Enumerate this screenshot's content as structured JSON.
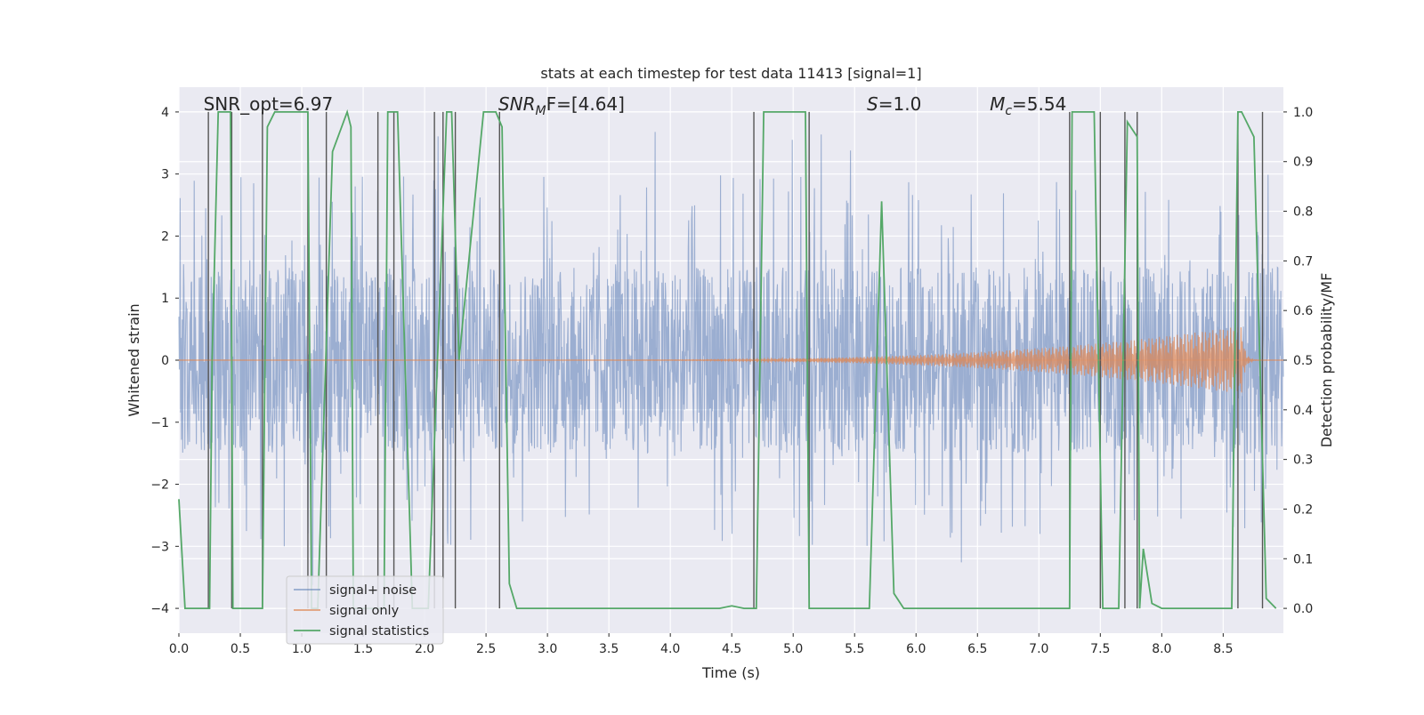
{
  "chart_data": {
    "type": "line",
    "title": "stats at each timestep for test data 11413 [signal=1]",
    "xlabel": "Time (s)",
    "ylabel": "Whitened strain",
    "ylabel_right": "Detection probability/MF",
    "xlim": [
      0.0,
      8.99
    ],
    "ylim_left": [
      -4.4,
      4.4
    ],
    "ylim_right": [
      -0.05,
      1.05
    ],
    "x_ticks": [
      0.0,
      0.5,
      1.0,
      1.5,
      2.0,
      2.5,
      3.0,
      3.5,
      4.0,
      4.5,
      5.0,
      5.5,
      6.0,
      6.5,
      7.0,
      7.5,
      8.0,
      8.5
    ],
    "x_tick_labels": [
      "0.0",
      "0.5",
      "1.0",
      "1.5",
      "2.0",
      "2.5",
      "3.0",
      "3.5",
      "4.0",
      "4.5",
      "5.0",
      "5.5",
      "6.0",
      "6.5",
      "7.0",
      "7.5",
      "8.0",
      "8.5"
    ],
    "y_ticks_left": [
      4,
      3,
      2,
      1,
      0,
      -1,
      -2,
      -3,
      -4
    ],
    "y_tick_labels_left": [
      "4",
      "3",
      "2",
      "1",
      "0",
      "−1",
      "−2",
      "−3",
      "−4"
    ],
    "y_ticks_right": [
      1.0,
      0.9,
      0.8,
      0.7,
      0.6,
      0.5,
      0.4,
      0.3,
      0.2,
      0.1,
      0.0
    ],
    "y_tick_labels_right": [
      "1.0",
      "0.9",
      "0.8",
      "0.7",
      "0.6",
      "0.5",
      "0.4",
      "0.3",
      "0.2",
      "0.1",
      "0.0"
    ],
    "annotations": [
      {
        "text": "SNR_opt=6.97",
        "x": 0.2
      },
      {
        "base": "SNR",
        "sub": "M",
        "rest": "F=[4.64]",
        "x": 2.6
      },
      {
        "base": "S",
        "sub": "",
        "rest": "=1.0",
        "x": 5.6
      },
      {
        "base": "M",
        "sub": "c",
        "rest": "=5.54",
        "x": 6.6
      }
    ],
    "legend": {
      "position": "lower-left",
      "entries": [
        "signal+ noise",
        "signal only",
        "signal statistics"
      ]
    },
    "series": [
      {
        "name": "signal+ noise",
        "axis": "left",
        "style": "noise-band",
        "core_amplitude": 1.5,
        "typical_peak": 3.0,
        "max": 3.8,
        "min": -3.7
      },
      {
        "name": "signal only",
        "axis": "left",
        "style": "chirp",
        "t_start": 2.7,
        "t_merge": 8.65,
        "peak_amplitude": 0.55
      },
      {
        "name": "signal statistics",
        "axis": "right",
        "x": [
          0.0,
          0.05,
          0.25,
          0.27,
          0.32,
          0.42,
          0.44,
          0.49,
          0.68,
          0.72,
          0.78,
          1.05,
          1.08,
          1.13,
          1.25,
          1.37,
          1.4,
          1.42,
          1.67,
          1.7,
          1.78,
          1.9,
          2.0,
          2.03,
          2.18,
          2.22,
          2.28,
          2.48,
          2.58,
          2.63,
          2.69,
          2.75,
          4.4,
          4.5,
          4.6,
          4.7,
          4.76,
          5.1,
          5.13,
          5.23,
          5.35,
          5.48,
          5.62,
          5.72,
          5.82,
          5.9,
          7.25,
          7.27,
          7.3,
          7.45,
          7.52,
          7.6,
          7.65,
          7.72,
          7.8,
          7.82,
          7.85,
          7.92,
          8.0,
          8.57,
          8.62,
          8.65,
          8.75,
          8.85,
          8.93
        ],
        "values": [
          0.22,
          0.0,
          0.0,
          0.5,
          1.0,
          1.0,
          0.0,
          0.0,
          0.0,
          0.97,
          1.0,
          1.0,
          0.0,
          0.0,
          0.92,
          1.0,
          0.97,
          0.0,
          0.0,
          1.0,
          1.0,
          0.0,
          0.0,
          0.0,
          1.0,
          1.0,
          0.5,
          1.0,
          1.0,
          0.97,
          0.05,
          0.0,
          0.0,
          0.005,
          0.0,
          0.0,
          1.0,
          1.0,
          0.0,
          0.0,
          0.0,
          0.0,
          0.0,
          0.82,
          0.03,
          0.0,
          0.0,
          1.0,
          1.0,
          1.0,
          0.0,
          0.0,
          0.0,
          0.98,
          0.95,
          0.0,
          0.12,
          0.01,
          0.0,
          0.0,
          1.0,
          1.0,
          0.95,
          0.02,
          0.0
        ]
      }
    ],
    "vertical_lines": [
      0.24,
      0.43,
      0.68,
      1.05,
      1.2,
      1.62,
      1.75,
      2.08,
      2.15,
      2.25,
      2.61,
      4.68,
      5.13,
      7.25,
      7.5,
      7.7,
      7.8,
      8.62,
      8.82
    ]
  },
  "colors": {
    "noise": "#4c72b0",
    "signal": "#dd8452",
    "stats": "#55a868",
    "vline": "#555555",
    "axes_bg": "#eaeaf2",
    "grid": "#ffffff",
    "text": "#262626"
  }
}
